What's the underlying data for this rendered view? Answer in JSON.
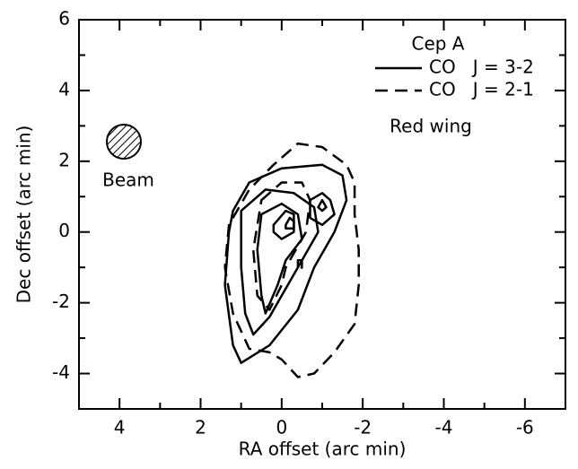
{
  "chart_data": {
    "type": "contour",
    "xlabel": "RA offset (arc min)",
    "ylabel": "Dec offset (arc min)",
    "xlim": [
      5,
      -7
    ],
    "ylim": [
      -5,
      6
    ],
    "xticks": [
      4,
      2,
      0,
      -2,
      -4,
      -6
    ],
    "yticks": [
      -4,
      -2,
      0,
      2,
      4,
      6
    ],
    "xminorticks": [
      5,
      3,
      1,
      -1,
      -3,
      -5,
      -7
    ],
    "yminorticks": [
      -5,
      -3,
      -1,
      1,
      3,
      5
    ],
    "legend_title": "Cep A",
    "annotation": "Red wing",
    "beam_label": "Beam",
    "series": [
      {
        "name": "CO   J = 3-2",
        "color": "#000000",
        "dash": "solid",
        "contours": [
          {
            "x": [
              1.2,
              0.8,
              0,
              -1.0,
              -1.5,
              -1.6,
              -1.3,
              -0.8,
              -0.4,
              0.3,
              1.0,
              1.2,
              1.4,
              1.3
            ],
            "y": [
              0.6,
              1.4,
              1.8,
              1.9,
              1.6,
              0.9,
              0,
              -1.0,
              -2.2,
              -3.2,
              -3.7,
              -3.2,
              -1.5,
              0
            ]
          },
          {
            "x": [
              1.0,
              0.4,
              -0.3,
              -0.8,
              -0.9,
              -0.4,
              0,
              0.3,
              0.7,
              0.9,
              1.0
            ],
            "y": [
              0.6,
              1.2,
              1.1,
              0.7,
              0,
              -1.0,
              -1.8,
              -2.4,
              -2.9,
              -2.3,
              -1.0
            ]
          },
          {
            "x": [
              0.5,
              0,
              -0.4,
              -0.5,
              -0.1,
              0.1,
              0.4,
              0.5,
              0.6
            ],
            "y": [
              0.5,
              0.8,
              0.5,
              -0.2,
              -0.8,
              -1.5,
              -2.3,
              -1.8,
              -0.5
            ]
          },
          {
            "x": [
              0.2,
              -0.1,
              -0.3,
              -0.3,
              0,
              0.2
            ],
            "y": [
              0.2,
              0.6,
              0.5,
              0,
              -0.2,
              0
            ]
          },
          {
            "x": [
              -0.1,
              -0.2,
              -0.3,
              -0.3,
              -0.1
            ],
            "y": [
              0.2,
              0.4,
              0.3,
              0.1,
              0.1
            ]
          },
          {
            "x": [
              -0.7,
              -1.0,
              -1.2,
              -1.3,
              -1.0,
              -0.7
            ],
            "y": [
              0.9,
              1.1,
              0.9,
              0.5,
              0.2,
              0.4
            ]
          },
          {
            "x": [
              -0.9,
              -1.0,
              -1.1,
              -1.0
            ],
            "y": [
              0.7,
              0.9,
              0.7,
              0.6
            ]
          }
        ]
      },
      {
        "name": "CO   J = 2-1",
        "color": "#000000",
        "dash": "dashed",
        "contours": [
          {
            "x": [
              0,
              -0.4,
              -1.0,
              -1.6,
              -1.8,
              -1.8,
              -1.9,
              -1.9,
              -1.8,
              -1.3,
              -0.8,
              -0.4,
              0,
              0.3,
              0.8,
              1.2,
              1.4,
              1.3,
              0.8,
              0.2
            ],
            "y": [
              2.1,
              2.5,
              2.4,
              1.9,
              1.4,
              0.5,
              -0.5,
              -1.5,
              -2.6,
              -3.4,
              -4.0,
              -4.1,
              -3.6,
              -3.4,
              -3.3,
              -2.3,
              -1.0,
              0.2,
              1.2,
              1.9
            ]
          },
          {
            "x": [
              0.5,
              0,
              -0.5,
              -0.7,
              -0.6,
              -0.1,
              0,
              0.3,
              0.6,
              0.7
            ],
            "y": [
              0.9,
              1.4,
              1.4,
              0.9,
              0,
              -1.0,
              -1.5,
              -2.2,
              -1.8,
              -0.5
            ]
          },
          {
            "x": [
              -0.4,
              -0.5,
              -0.5,
              -0.4
            ],
            "y": [
              -0.8,
              -0.8,
              -1.0,
              -1.1
            ]
          }
        ]
      }
    ]
  }
}
